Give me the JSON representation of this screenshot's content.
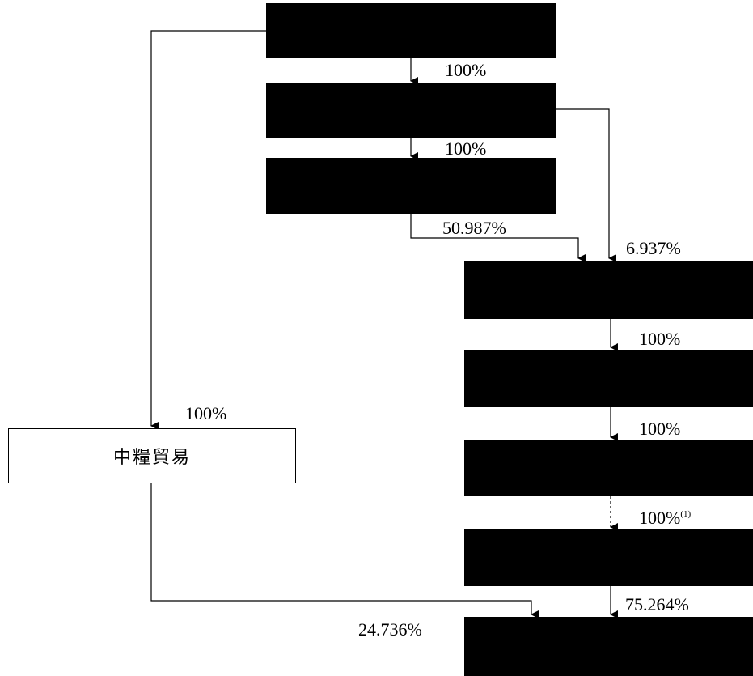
{
  "colors": {
    "redacted_box": "#000000",
    "line": "#000000",
    "background": "#ffffff"
  },
  "boxes": {
    "trading_company": "中糧貿易"
  },
  "percentages": {
    "top_to_second": "100%",
    "second_to_third": "100%",
    "third_to_first_right": "50.987%",
    "second_to_first_right": "6.937%",
    "right1_to_right2": "100%",
    "right2_to_right3": "100%",
    "right3_to_right4": "100%",
    "right3_to_right4_note": "(1)",
    "top_to_trading": "100%",
    "right4_to_bottom": "75.264%",
    "trading_to_bottom": "24.736%"
  }
}
